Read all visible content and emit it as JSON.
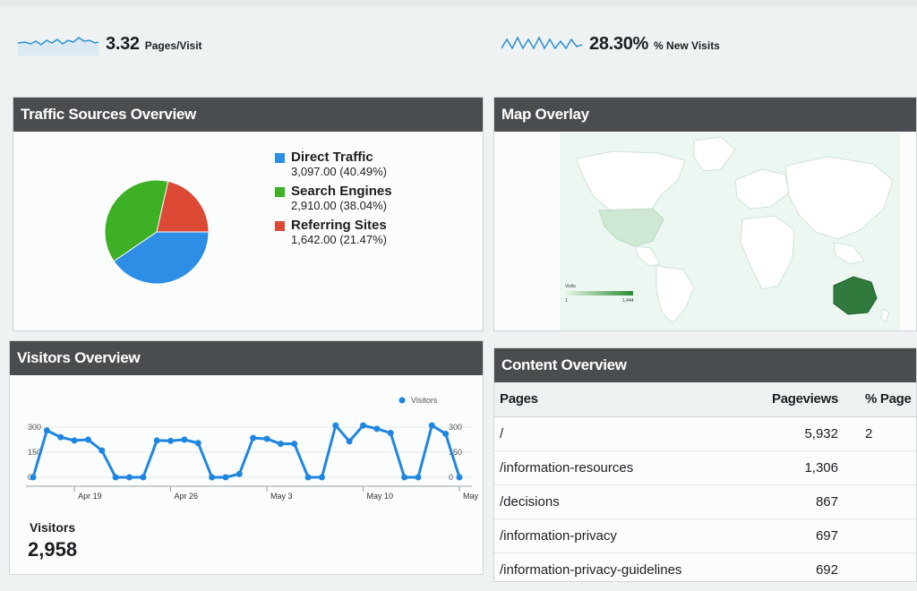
{
  "stats": [
    {
      "value": "3.32",
      "label": "Pages/Visit"
    },
    {
      "value": "28.30%",
      "label": "% New Visits"
    }
  ],
  "traffic_sources": {
    "title": "Traffic Sources Overview",
    "items": [
      {
        "name": "Direct Traffic",
        "value": "3,097.00 (40.49%)",
        "color": "#2e8ee6"
      },
      {
        "name": "Search Engines",
        "value": "2,910.00 (38.04%)",
        "color": "#3db026"
      },
      {
        "name": "Referring Sites",
        "value": "1,642.00 (21.47%)",
        "color": "#dc4a36"
      }
    ]
  },
  "map": {
    "title": "Map Overlay",
    "legend_label": "Visits",
    "legend_min": "1",
    "legend_max": "1,444"
  },
  "visitors": {
    "title": "Visitors Overview",
    "legend": "Visitors",
    "total_label": "Visitors",
    "total_value": "2,958"
  },
  "content": {
    "title": "Content Overview",
    "columns": [
      "Pages",
      "Pageviews",
      "% Page"
    ],
    "rows": [
      {
        "page": "/",
        "pageviews": "5,932",
        "pct": "2"
      },
      {
        "page": "/information-resources",
        "pageviews": "1,306",
        "pct": ""
      },
      {
        "page": "/decisions",
        "pageviews": "867",
        "pct": ""
      },
      {
        "page": "/information-privacy",
        "pageviews": "697",
        "pct": ""
      },
      {
        "page": "/information-privacy-guidelines",
        "pageviews": "692",
        "pct": ""
      }
    ]
  },
  "chart_data": [
    {
      "type": "pie",
      "categories": [
        "Direct Traffic",
        "Search Engines",
        "Referring Sites"
      ],
      "values": [
        3097,
        2910,
        1642
      ]
    },
    {
      "type": "line",
      "categories": [
        "Apr 16",
        "Apr 17",
        "Apr 18",
        "Apr 19",
        "Apr 20",
        "Apr 21",
        "Apr 22",
        "Apr 23",
        "Apr 24",
        "Apr 25",
        "Apr 26",
        "Apr 27",
        "Apr 28",
        "Apr 29",
        "Apr 30",
        "May 1",
        "May 2",
        "May 3",
        "May 4",
        "May 5",
        "May 6",
        "May 7",
        "May 8",
        "May 9",
        "May 10",
        "May 11",
        "May 12",
        "May 13",
        "May 14",
        "May 15",
        "May 16",
        "May 17"
      ],
      "x_tick_labels": [
        "Apr 19",
        "Apr 26",
        "May 3",
        "May 10",
        "May"
      ],
      "y_ticks": [
        0,
        150,
        300
      ],
      "ylim": [
        0,
        300
      ],
      "series": [
        {
          "name": "Visitors",
          "values": [
            0,
            280,
            240,
            220,
            225,
            160,
            0,
            0,
            0,
            220,
            218,
            225,
            205,
            0,
            0,
            20,
            235,
            230,
            200,
            200,
            0,
            0,
            310,
            215,
            310,
            290,
            265,
            0,
            0,
            310,
            260,
            0
          ]
        }
      ],
      "legend_position": "top-right"
    }
  ]
}
